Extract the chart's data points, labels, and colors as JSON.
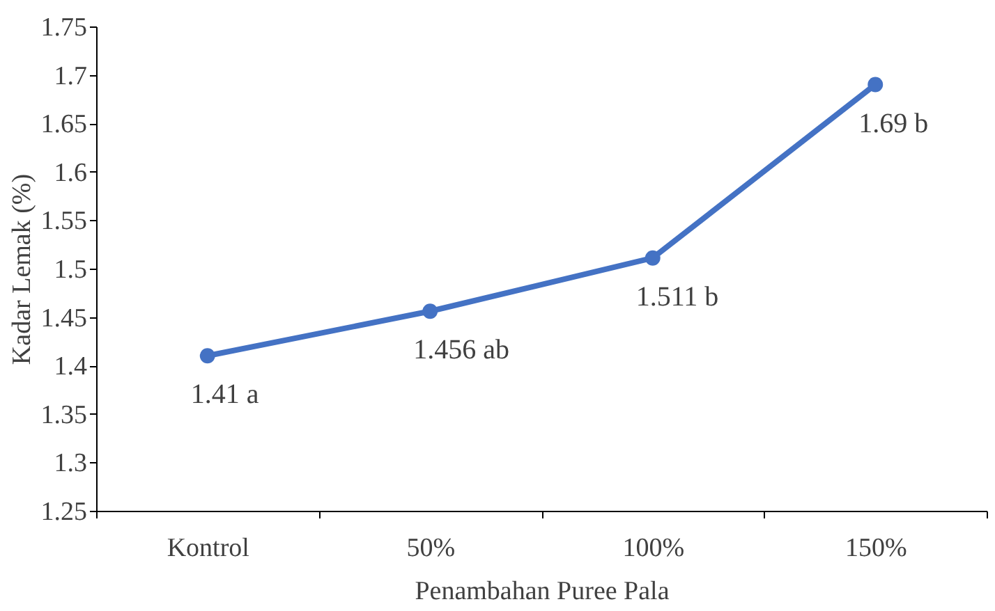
{
  "chart_data": {
    "type": "line",
    "xlabel": "Penambahan Puree Pala",
    "ylabel": "Kadar Lemak (%)",
    "categories": [
      "Kontrol",
      "50%",
      "100%",
      "150%"
    ],
    "series": [
      {
        "color": "#4472c4",
        "values": [
          1.41,
          1.456,
          1.511,
          1.69
        ],
        "value_labels": [
          "1.41 a",
          "1.456 ab",
          "1.511 b",
          "1.69 b"
        ]
      }
    ],
    "ylim": [
      1.25,
      1.75
    ],
    "yticks": [
      1.25,
      1.3,
      1.35,
      1.4,
      1.45,
      1.5,
      1.55,
      1.6,
      1.65,
      1.7,
      1.75
    ],
    "marker": "circle",
    "grid": false
  }
}
